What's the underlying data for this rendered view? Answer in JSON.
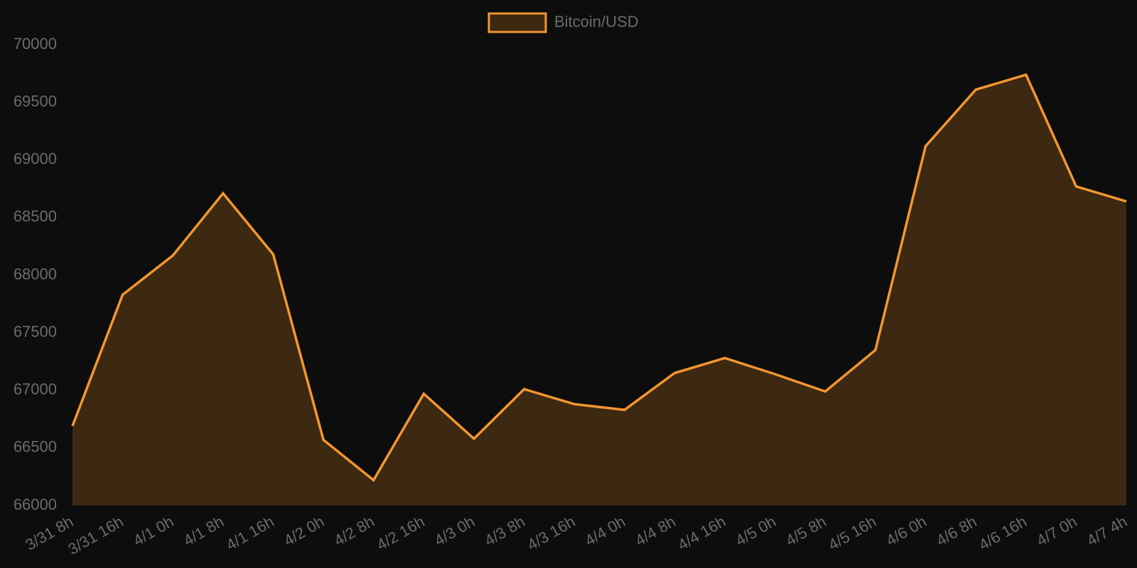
{
  "chart_data": {
    "type": "area",
    "categories": [
      "3/31 8h",
      "3/31 16h",
      "4/1 0h",
      "4/1 8h",
      "4/1 16h",
      "4/2 0h",
      "4/2 8h",
      "4/2 16h",
      "4/3 0h",
      "4/3 8h",
      "4/3 16h",
      "4/4 0h",
      "4/4 8h",
      "4/4 16h",
      "4/5 0h",
      "4/5 8h",
      "4/5 16h",
      "4/6 0h",
      "4/6 8h",
      "4/6 16h",
      "4/7 0h",
      "4/7 4h"
    ],
    "series": [
      {
        "name": "Bitcoin/USD",
        "color": "#f29630",
        "fill": "#3d2811",
        "values": [
          66690,
          67830,
          68170,
          68710,
          68180,
          66570,
          66220,
          66970,
          66580,
          67010,
          66880,
          66830,
          67150,
          67280,
          67140,
          66990,
          67350,
          69120,
          69610,
          69740,
          68770,
          68640
        ]
      }
    ],
    "ylim": [
      66000,
      70000
    ],
    "yticks": [
      66000,
      66500,
      67000,
      67500,
      68000,
      68500,
      69000,
      69500,
      70000
    ],
    "legend": "top"
  }
}
